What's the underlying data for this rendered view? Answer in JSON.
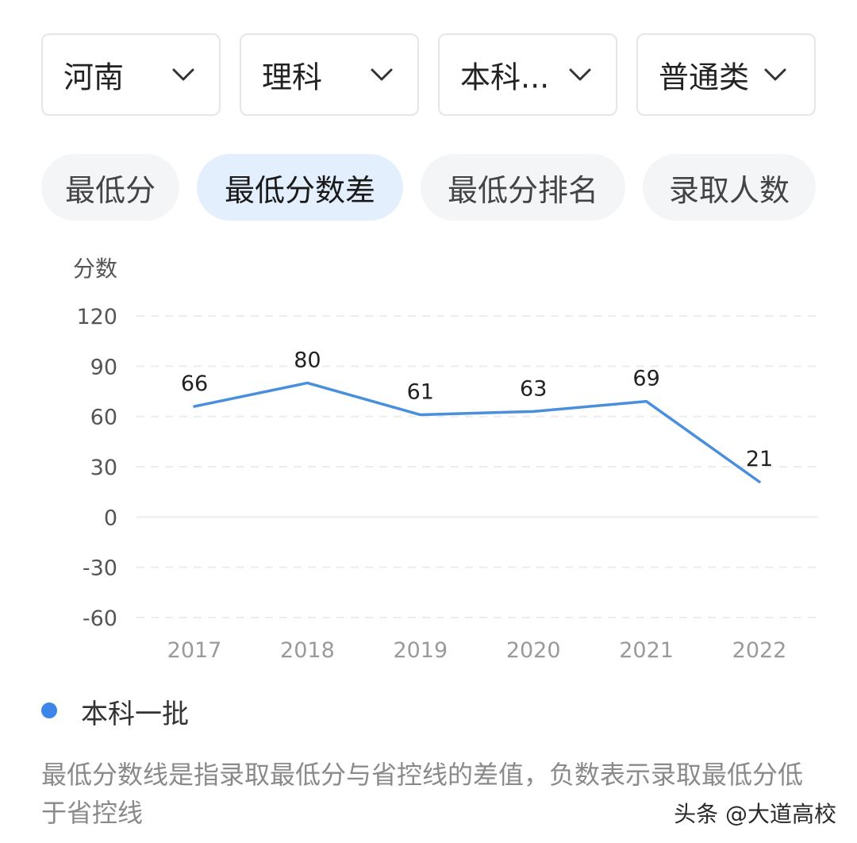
{
  "filters": [
    {
      "label": "河南"
    },
    {
      "label": "理科"
    },
    {
      "label": "本科..."
    },
    {
      "label": "普通类"
    }
  ],
  "tabs": [
    {
      "label": "最低分",
      "active": false
    },
    {
      "label": "最低分数差",
      "active": true
    },
    {
      "label": "最低分排名",
      "active": false
    },
    {
      "label": "录取人数",
      "active": false
    }
  ],
  "chart_data": {
    "type": "line",
    "title": "",
    "ylabel": "分数",
    "xlabel": "",
    "categories": [
      "2017",
      "2018",
      "2019",
      "2020",
      "2021",
      "2022"
    ],
    "yticks": [
      120,
      90,
      60,
      30,
      0,
      -30,
      -60
    ],
    "ylim": [
      -60,
      120
    ],
    "grid": true,
    "series": [
      {
        "name": "本科一批",
        "values": [
          66,
          80,
          61,
          63,
          69,
          21
        ],
        "color": "#4a8fdc"
      }
    ],
    "legend": "bottom-left"
  },
  "legend": {
    "label": "本科一批",
    "color": "#3b86e8"
  },
  "note": "最低分数线是指录取最低分与省控线的差值，负数表示录取最低分低于省控线",
  "watermark": "头条 @大道高校"
}
